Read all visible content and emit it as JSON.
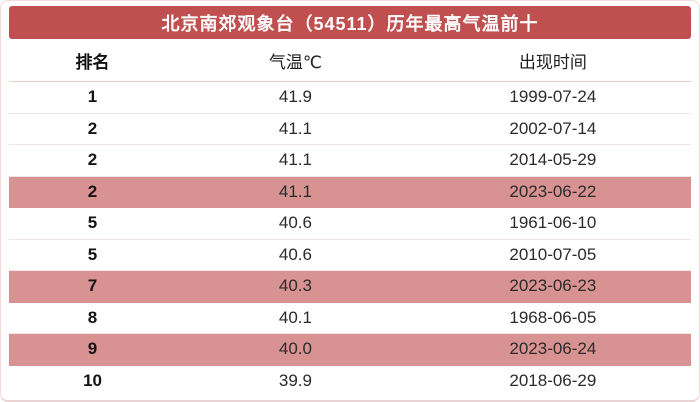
{
  "colors": {
    "header_bg": "#C05050",
    "title_text": "#FFFFFF",
    "highlight_bg": "#D89292",
    "border": "#F3DCDC",
    "bottom_border": "#EBD3D3",
    "header_separator": "#E9C8C8",
    "row_separator": "#F0E5E5",
    "rank_text": "#141414",
    "data_text": "#2B2B2B"
  },
  "table": {
    "title": "北京南郊观象台（54511）历年最高气温前十",
    "headers": {
      "rank": "排名",
      "temp": "气温℃",
      "date": "出现时间"
    },
    "rows": [
      {
        "rank": "1",
        "temp": "41.9",
        "date": "1999-07-24",
        "highlight": false
      },
      {
        "rank": "2",
        "temp": "41.1",
        "date": "2002-07-14",
        "highlight": false
      },
      {
        "rank": "2",
        "temp": "41.1",
        "date": "2014-05-29",
        "highlight": false
      },
      {
        "rank": "2",
        "temp": "41.1",
        "date": "2023-06-22",
        "highlight": true
      },
      {
        "rank": "5",
        "temp": "40.6",
        "date": "1961-06-10",
        "highlight": false
      },
      {
        "rank": "5",
        "temp": "40.6",
        "date": "2010-07-05",
        "highlight": false
      },
      {
        "rank": "7",
        "temp": "40.3",
        "date": "2023-06-23",
        "highlight": true
      },
      {
        "rank": "8",
        "temp": "40.1",
        "date": "1968-06-05",
        "highlight": false
      },
      {
        "rank": "9",
        "temp": "40.0",
        "date": "2023-06-24",
        "highlight": true
      },
      {
        "rank": "10",
        "temp": "39.9",
        "date": "2018-06-29",
        "highlight": false
      }
    ]
  },
  "chart_data": {
    "type": "table",
    "title": "北京南郊观象台（54511）历年最高气温前十",
    "columns": [
      "排名",
      "气温℃",
      "出现时间"
    ],
    "rows": [
      [
        "1",
        41.9,
        "1999-07-24"
      ],
      [
        "2",
        41.1,
        "2002-07-14"
      ],
      [
        "2",
        41.1,
        "2014-05-29"
      ],
      [
        "2",
        41.1,
        "2023-06-22"
      ],
      [
        "5",
        40.6,
        "1961-06-10"
      ],
      [
        "5",
        40.6,
        "2010-07-05"
      ],
      [
        "7",
        40.3,
        "2023-06-23"
      ],
      [
        "8",
        40.1,
        "1968-06-05"
      ],
      [
        "9",
        40.0,
        "2023-06-24"
      ],
      [
        "10",
        39.9,
        "2018-06-29"
      ]
    ],
    "highlighted_row_indices": [
      3,
      6,
      8
    ]
  }
}
